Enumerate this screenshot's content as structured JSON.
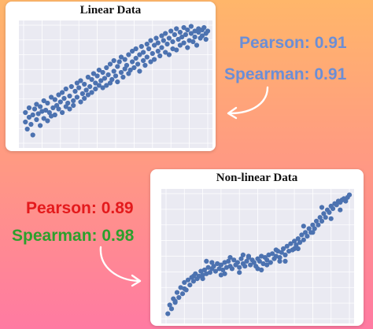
{
  "annotations": {
    "linear_pearson": "Pearson: 0.91",
    "linear_spearman": "Spearman: 0.91",
    "nonlinear_pearson": "Pearson: 0.89",
    "nonlinear_spearman": "Spearman: 0.98"
  },
  "colors": {
    "points": "#4c72b0",
    "plot_background": "#eaeaf2",
    "grid": "#ffffff",
    "linear_text": "#6b8ed6",
    "pearson_red": "#e41a1c",
    "spearman_green": "#2ca02c",
    "arrow": "#ffffff"
  },
  "chart_data": [
    {
      "type": "scatter",
      "title": "Linear Data",
      "xlabel": "",
      "ylabel": "",
      "xlim": [
        0,
        10
      ],
      "ylim": [
        0,
        10
      ],
      "grid": true,
      "x": [
        0.1,
        0.1,
        0.2,
        0.3,
        0.3,
        0.4,
        0.5,
        0.5,
        0.6,
        0.7,
        0.7,
        0.8,
        0.9,
        0.9,
        1.0,
        1.1,
        1.1,
        1.2,
        1.3,
        1.3,
        1.4,
        1.5,
        1.5,
        1.6,
        1.7,
        1.7,
        1.8,
        1.9,
        1.9,
        2.0,
        2.1,
        2.1,
        2.2,
        2.3,
        2.3,
        2.4,
        2.5,
        2.5,
        2.6,
        2.7,
        2.7,
        2.8,
        2.9,
        2.9,
        3.0,
        3.1,
        3.1,
        3.2,
        3.3,
        3.3,
        3.4,
        3.5,
        3.5,
        3.6,
        3.7,
        3.7,
        3.8,
        3.9,
        3.9,
        4.0,
        4.1,
        4.1,
        4.2,
        4.3,
        4.3,
        4.4,
        4.5,
        4.5,
        4.6,
        4.7,
        4.7,
        4.8,
        4.9,
        4.9,
        5.0,
        5.1,
        5.1,
        5.2,
        5.3,
        5.3,
        5.4,
        5.5,
        5.5,
        5.6,
        5.7,
        5.7,
        5.8,
        5.9,
        5.9,
        6.0,
        6.1,
        6.1,
        6.2,
        6.3,
        6.3,
        6.4,
        6.5,
        6.5,
        6.6,
        6.7,
        6.7,
        6.8,
        6.9,
        6.9,
        7.0,
        7.1,
        7.1,
        7.2,
        7.3,
        7.3,
        7.4,
        7.5,
        7.5,
        7.6,
        7.7,
        7.7,
        7.8,
        7.9,
        7.9,
        8.0,
        8.1,
        8.1,
        8.2,
        8.3,
        8.3,
        8.4,
        8.5,
        8.5,
        8.6,
        8.7,
        8.7,
        8.8,
        8.9,
        8.9,
        9.0,
        9.1,
        9.1,
        9.2,
        9.3,
        9.3,
        9.4,
        9.5,
        9.5,
        9.6,
        9.7,
        9.7,
        9.8,
        9.9,
        9.9,
        10.0
      ],
      "y": [
        1.8,
        2.6,
        1.2,
        2.2,
        3.0,
        1.6,
        2.4,
        0.7,
        2.9,
        2.0,
        3.3,
        2.5,
        1.5,
        3.1,
        2.7,
        2.1,
        3.6,
        2.8,
        1.9,
        3.4,
        2.6,
        3.9,
        2.3,
        3.0,
        3.7,
        2.4,
        3.2,
        4.1,
        2.9,
        3.5,
        2.6,
        4.3,
        3.8,
        3.1,
        4.6,
        3.4,
        2.9,
        4.0,
        4.8,
        3.6,
        3.2,
        4.4,
        5.1,
        3.9,
        4.7,
        3.5,
        5.3,
        4.2,
        3.8,
        5.0,
        4.5,
        5.6,
        4.1,
        4.8,
        5.4,
        4.3,
        5.9,
        5.1,
        4.6,
        5.7,
        4.9,
        6.2,
        5.3,
        4.7,
        6.0,
        5.5,
        4.9,
        6.4,
        5.8,
        5.1,
        6.7,
        5.4,
        6.1,
        7.0,
        5.7,
        6.5,
        5.2,
        6.9,
        6.0,
        7.3,
        5.6,
        6.3,
        7.1,
        6.6,
        5.9,
        7.5,
        6.2,
        6.9,
        7.8,
        6.4,
        7.2,
        8.0,
        6.7,
        7.5,
        6.1,
        8.2,
        7.0,
        7.7,
        6.6,
        8.4,
        7.3,
        8.0,
        6.9,
        8.7,
        7.6,
        8.3,
        7.1,
        8.9,
        7.8,
        8.5,
        7.4,
        9.1,
        8.1,
        8.7,
        7.7,
        9.3,
        8.4,
        7.5,
        8.9,
        9.5,
        8.0,
        8.6,
        9.2,
        7.9,
        9.7,
        8.8,
        8.3,
        9.4,
        9.0,
        8.5,
        9.8,
        9.2,
        8.1,
        9.6,
        8.7,
        9.9,
        9.3,
        8.6,
        9.5,
        9.0,
        8.3,
        9.7,
        9.4,
        8.9,
        9.6,
        9.1,
        9.8,
        8.8,
        9.3,
        9.5
      ]
    },
    {
      "type": "scatter",
      "title": "Non-linear Data",
      "xlabel": "",
      "ylabel": "",
      "xlim": [
        0,
        10
      ],
      "ylim": [
        0,
        10
      ],
      "grid": true,
      "x": [
        0.1,
        0.2,
        0.3,
        0.4,
        0.5,
        0.6,
        0.7,
        0.8,
        0.9,
        1.0,
        1.1,
        1.2,
        1.3,
        1.4,
        1.5,
        1.6,
        1.7,
        1.8,
        1.9,
        2.0,
        2.1,
        2.2,
        2.3,
        2.4,
        2.5,
        2.6,
        2.7,
        2.8,
        2.9,
        3.0,
        3.1,
        3.2,
        3.3,
        3.4,
        3.5,
        3.6,
        3.7,
        3.8,
        3.9,
        4.0,
        4.1,
        4.2,
        4.3,
        4.4,
        4.5,
        4.6,
        4.7,
        4.8,
        4.9,
        5.0,
        5.1,
        5.2,
        5.3,
        5.4,
        5.5,
        5.6,
        5.7,
        5.8,
        5.9,
        6.0,
        6.1,
        6.2,
        6.3,
        6.4,
        6.5,
        6.6,
        6.7,
        6.8,
        6.9,
        7.0,
        7.1,
        7.2,
        7.3,
        7.4,
        7.5,
        7.6,
        7.7,
        7.8,
        7.9,
        8.0,
        8.1,
        8.2,
        8.3,
        8.4,
        8.5,
        8.6,
        8.7,
        8.8,
        8.9,
        9.0,
        9.1,
        9.2,
        9.3,
        9.4,
        9.5,
        9.6,
        9.7,
        9.8,
        9.9,
        10.0,
        0.5,
        1.0,
        1.5,
        2.0,
        2.5,
        3.0,
        3.5,
        4.0,
        4.5,
        5.0,
        5.5,
        6.0,
        6.5,
        7.0,
        7.5,
        8.0,
        8.5,
        9.0,
        9.5,
        3.2,
        4.2,
        5.2,
        6.2,
        2.2,
        7.2
      ],
      "y": [
        0.4,
        1.1,
        0.8,
        1.6,
        1.3,
        2.1,
        1.7,
        2.5,
        2.0,
        2.9,
        2.3,
        3.1,
        2.7,
        3.3,
        3.0,
        3.6,
        3.2,
        3.4,
        3.8,
        3.5,
        3.9,
        3.6,
        4.1,
        3.7,
        4.0,
        4.2,
        3.8,
        4.4,
        4.0,
        4.3,
        3.9,
        4.5,
        4.1,
        4.6,
        4.2,
        4.0,
        4.7,
        4.3,
        4.5,
        4.1,
        4.8,
        4.4,
        4.2,
        4.6,
        4.9,
        4.3,
        4.7,
        4.5,
        4.2,
        4.8,
        4.6,
        5.0,
        4.4,
        4.9,
        4.7,
        5.1,
        4.5,
        5.2,
        4.8,
        5.0,
        5.4,
        4.9,
        5.3,
        5.6,
        5.1,
        5.8,
        5.4,
        6.0,
        5.5,
        6.2,
        5.9,
        6.4,
        6.1,
        6.7,
        6.3,
        6.9,
        6.6,
        7.2,
        6.9,
        7.5,
        7.2,
        7.8,
        7.5,
        8.1,
        7.8,
        8.4,
        8.1,
        8.7,
        8.5,
        9.0,
        8.8,
        9.2,
        9.1,
        9.4,
        9.3,
        9.5,
        9.6,
        9.4,
        9.7,
        9.9,
        1.4,
        2.4,
        3.4,
        3.2,
        4.5,
        3.5,
        4.9,
        3.7,
        5.0,
        4.0,
        4.3,
        5.5,
        4.6,
        5.6,
        7.4,
        6.9,
        8.9,
        8.0,
        8.7,
        3.6,
        5.1,
        3.9,
        4.6,
        4.6,
        5.6
      ]
    }
  ]
}
